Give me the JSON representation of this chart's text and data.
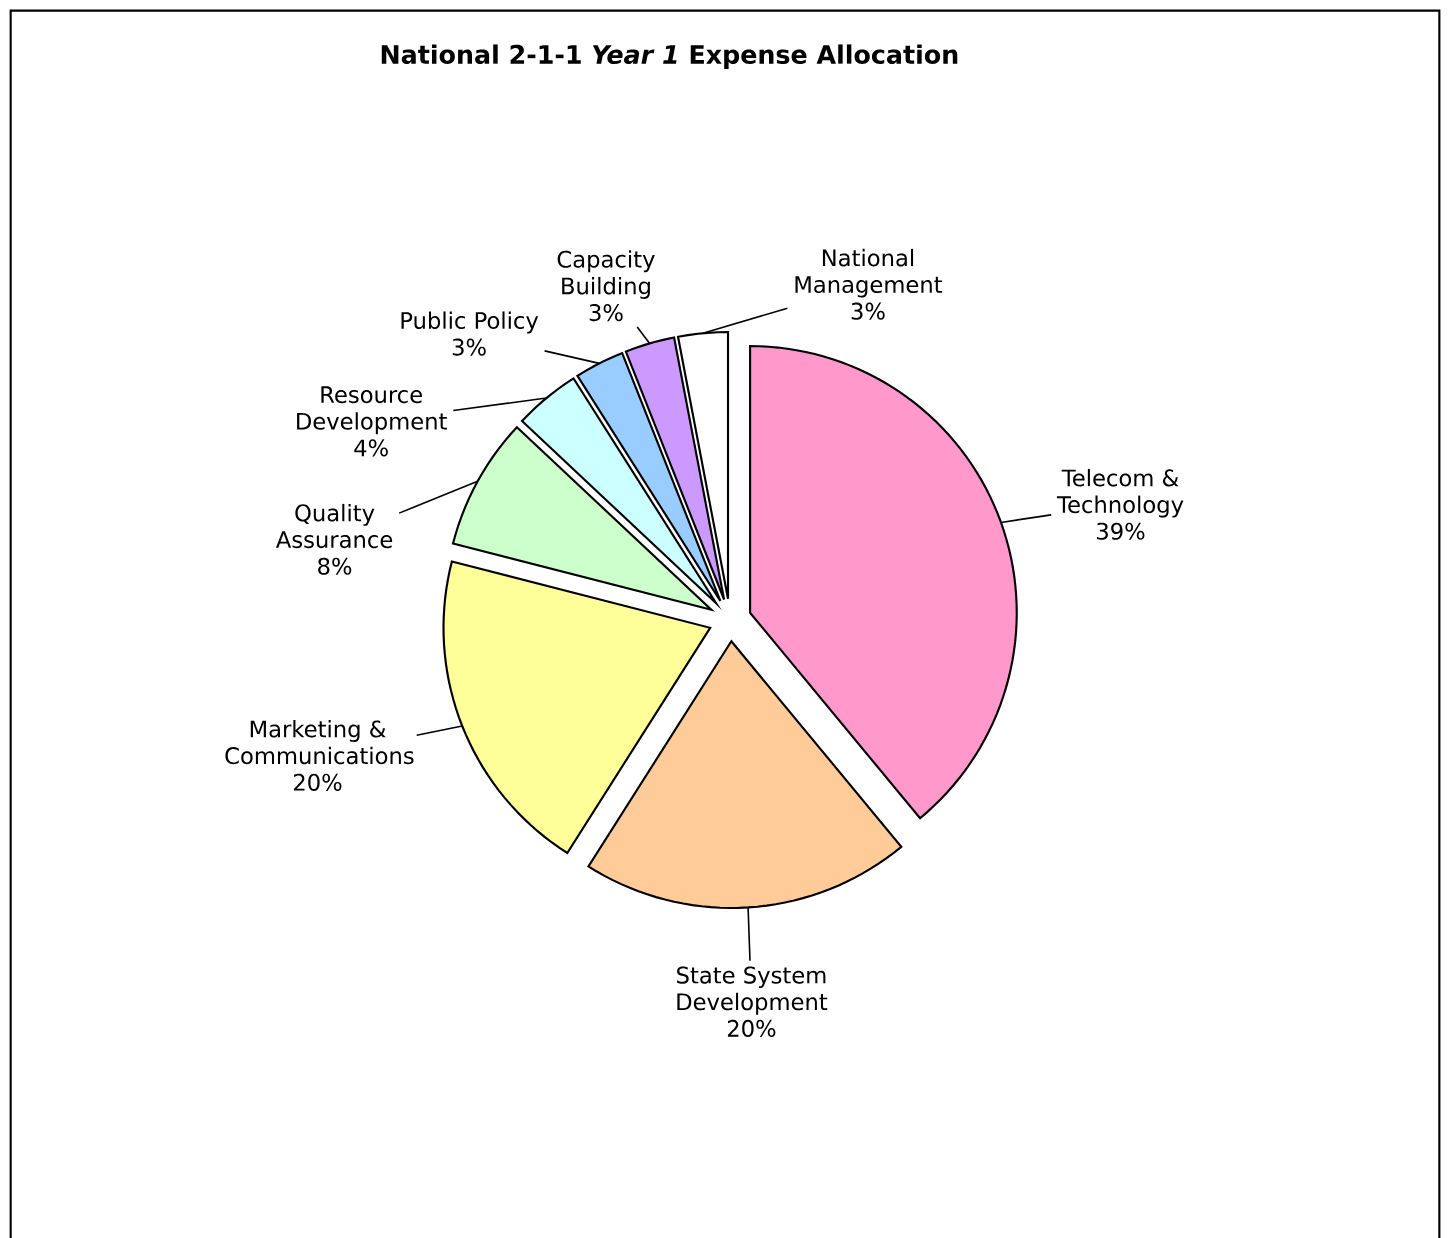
{
  "chart_data": {
    "type": "pie",
    "title": "National 2-1-1 *Year 1* Expense Allocation",
    "categories": [
      "Telecom & Technology",
      "State System Development",
      "Marketing & Communications",
      "Quality Assurance",
      "Resource Development",
      "Public Policy",
      "Capacity Building",
      "National Management"
    ],
    "values": [
      39,
      20,
      20,
      8,
      4,
      3,
      3,
      3
    ],
    "value_labels": [
      "39%",
      "20%",
      "20%",
      "8%",
      "4%",
      "3%",
      "3%",
      "3%"
    ],
    "colors": [
      "#ff99cc",
      "#ffcc99",
      "#ffff99",
      "#ccffcc",
      "#ccffff",
      "#99ccff",
      "#cc99ff",
      "#ffffff"
    ]
  }
}
